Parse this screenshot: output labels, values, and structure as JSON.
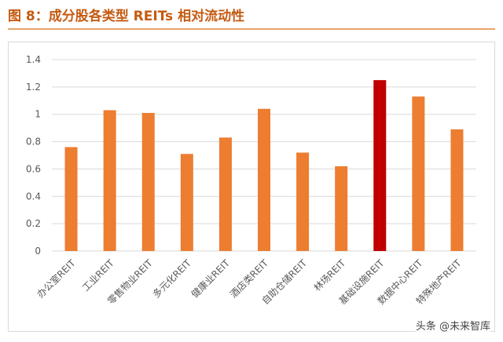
{
  "page": {
    "title": "图 8：成分股各类型 REITs 相对流动性",
    "watermark": "头条 @未来智库"
  },
  "colors": {
    "title": "#c55a11",
    "bar_default": "#ed7d31",
    "bar_highlight": "#c00000",
    "grid": "#d9d9d9",
    "axis_text": "#595959"
  },
  "chart_data": {
    "type": "bar",
    "title": "",
    "xlabel": "",
    "ylabel": "",
    "ylim": [
      0,
      1.4
    ],
    "yticks": [
      0,
      0.2,
      0.4,
      0.6,
      0.8,
      1,
      1.2,
      1.4
    ],
    "ytick_labels": [
      "0",
      "0.2",
      "0.4",
      "0.6",
      "0.8",
      "1",
      "1.2",
      "1.4"
    ],
    "grid": true,
    "legend": "none",
    "categories": [
      "办公室REIT",
      "工业REIT",
      "零售物业REIT",
      "多元化REIT",
      "健康业REIT",
      "酒店类REIT",
      "自助仓储REIT",
      "林场REIT",
      "基础设施REIT",
      "数据中心REIT",
      "特殊地产REIT"
    ],
    "values": [
      0.76,
      1.03,
      1.01,
      0.71,
      0.83,
      1.04,
      0.72,
      0.62,
      1.25,
      1.13,
      0.89
    ],
    "highlight_index": 8
  }
}
